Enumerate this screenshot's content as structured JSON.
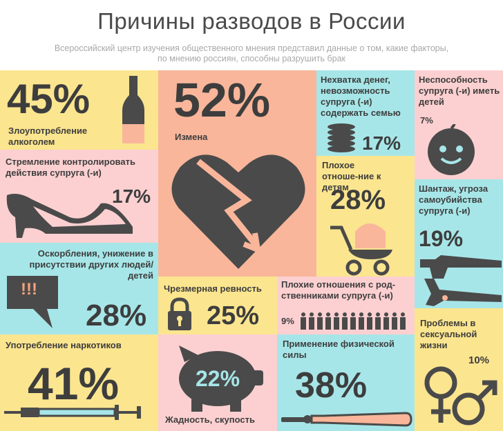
{
  "header": {
    "title": "Причины разводов в России",
    "subtitle_line1": "Всероссийский центр изучения общественного мнения представил данные о том, какие факторы,",
    "subtitle_line2": "по мнению россиян, способны разрушить брак"
  },
  "chart_data": {
    "type": "bar",
    "title": "Причины разводов в России",
    "categories": [
      "Злоупотребление алкоголем",
      "Измена",
      "Нехватка денег, невозможность супруга (-и) содержать семью",
      "Неспособность супруга (-и) иметь детей",
      "Стремление контролировать действия супруга (-и)",
      "Плохое отношение к детям",
      "Шантаж, угроза самоубийства супруга (-и)",
      "Оскорбления, унижение в присутствии других людей/детей",
      "Чрезмерная ревность",
      "Плохие отношения с родственниками супруга (-и)",
      "Проблемы в сексуальной жизни",
      "Употребление наркотиков",
      "Жадность, скупость",
      "Применение физической силы"
    ],
    "values": [
      45,
      52,
      17,
      7,
      17,
      28,
      19,
      28,
      25,
      9,
      10,
      41,
      22,
      38
    ],
    "unit": "%"
  },
  "tiles": {
    "alcohol": {
      "pct": "45%",
      "label": "Злоупотребление алкоголем"
    },
    "betrayal": {
      "pct": "52%",
      "label": "Измена"
    },
    "money": {
      "pct": "17%",
      "label": "Нехватка денег, невозможность супруга (-и) содержать семью"
    },
    "infertile": {
      "pct": "7%",
      "label": "Неспособность супруга (-и) иметь детей"
    },
    "control": {
      "pct": "17%",
      "label": "Стремление контролировать действия супруга (-и)"
    },
    "children": {
      "pct": "28%",
      "label": "Плохое отноше-ние к детям"
    },
    "blackmail": {
      "pct": "19%",
      "label": "Шантаж, угроза самоубийства супруга (-и)"
    },
    "insults": {
      "pct": "28%",
      "label": "Оскорбления, унижение в присутствии других людей/детей",
      "bubble": "!!!"
    },
    "jealousy": {
      "pct": "25%",
      "label": "Чрезмерная ревность"
    },
    "relatives": {
      "pct": "9%",
      "label": "Плохие отношения с род-ственниками супруга (-и)"
    },
    "sex": {
      "pct": "10%",
      "label": "Проблемы в сексуальной жизни"
    },
    "drugs": {
      "pct": "41%",
      "label": "Употребление наркотиков"
    },
    "greed": {
      "pct": "22%",
      "label": "Жадность, скупость"
    },
    "violence": {
      "pct": "38%",
      "label": "Применение физической силы"
    }
  },
  "colors": {
    "yellow": "#fbe58f",
    "pink": "#fcd0d1",
    "cyan": "#a7e6e8",
    "orange": "#f9b69a",
    "dark": "#4a4a4a"
  }
}
